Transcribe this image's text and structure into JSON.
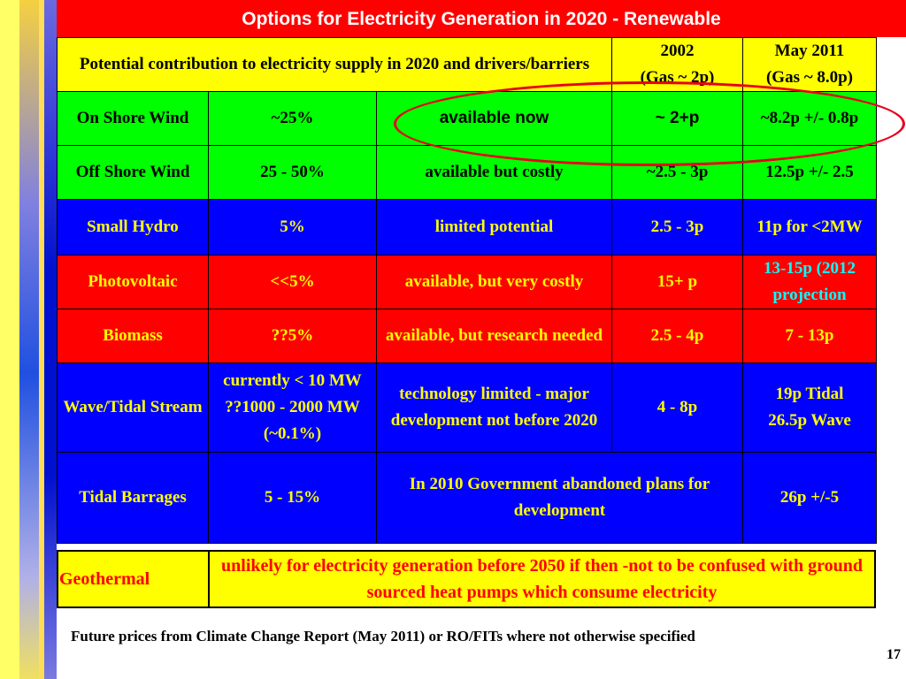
{
  "title": "Options for Electricity Generation in 2020 - Renewable",
  "header": {
    "desc": "Potential contribution to electricity supply in 2020  and drivers/barriers",
    "col_2002_line1": "2002",
    "col_2002_line2": "(Gas ~ 2p)",
    "col_2011_line1": "May 2011",
    "col_2011_line2": "(Gas ~ 8.0p)"
  },
  "rows": {
    "onshore": {
      "name": "On Shore Wind",
      "contribution": "~25%",
      "driver": "available now",
      "p2002": "~ 2+p",
      "p2011": "~8.2p +/- 0.8p"
    },
    "offshore": {
      "name": "Off Shore Wind",
      "contribution": "25 - 50%",
      "driver": "available but costly",
      "p2002": "~2.5 - 3p",
      "p2011": "12.5p +/- 2.5"
    },
    "hydro": {
      "name": "Small Hydro",
      "contribution": "5%",
      "driver": "limited potential",
      "p2002": "2.5 - 3p",
      "p2011": "11p for <2MW"
    },
    "pv": {
      "name": "Photovoltaic",
      "contribution": "<<5%",
      "driver": "available, but very costly",
      "p2002": "15+ p",
      "p2011": "13-15p (2012 projection"
    },
    "biomass": {
      "name": "Biomass",
      "contribution": "??5%",
      "driver": "available, but research needed",
      "p2002": "2.5 - 4p",
      "p2011": "7 - 13p"
    },
    "wave": {
      "name": "Wave/Tidal Stream",
      "contribution_l1": "currently < 10 MW",
      "contribution_l2": "??1000 - 2000 MW",
      "contribution_l3": "(~0.1%)",
      "driver": "technology limited - major development not before 2020",
      "p2002": "4 - 8p",
      "p2011_l1": "19p Tidal",
      "p2011_l2": "26.5p Wave"
    },
    "barrage": {
      "name": "Tidal Barrages",
      "contribution": "5 - 15%",
      "driver": "In 2010 Government abandoned plans for development",
      "p2011": "26p +/-5"
    }
  },
  "geothermal": {
    "name": "Geothermal",
    "text": "unlikely for electricity generation before 2050 if then -not to be confused with ground sourced heat pumps which consume electricity"
  },
  "footer": "Future prices from Climate Change Report (May 2011) or  RO/FITs where not  otherwise specified",
  "page_number": "17",
  "colors": {
    "title_bg": "#ff0000",
    "header_bg": "#ffff00",
    "green": "#00ff00",
    "blue": "#0000ff",
    "red": "#ff0000",
    "oval": "#e8001c"
  }
}
